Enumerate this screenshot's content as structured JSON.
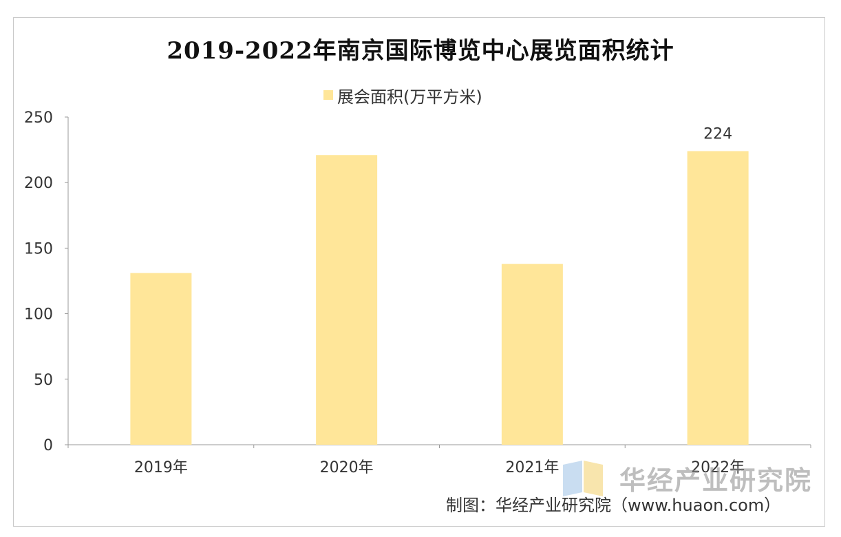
{
  "chart_data": {
    "type": "bar",
    "title": "2019-2022年南京国际博览中心展览面积统计",
    "categories": [
      "2019年",
      "2020年",
      "2021年",
      "2022年"
    ],
    "series": [
      {
        "name": "展会面积(万平方米)",
        "values": [
          131,
          221,
          138,
          224
        ]
      }
    ],
    "data_labels": [
      "",
      "",
      "",
      "224"
    ],
    "yticks": [
      "0",
      "50",
      "100",
      "150",
      "200",
      "250"
    ],
    "ylim": [
      0,
      250
    ],
    "legend_position": "top-center",
    "grid": false,
    "bar_color": "#ffe699"
  },
  "credit": "制图：华经产业研究院（www.huaon.com）",
  "watermark": "华经产业研究院"
}
